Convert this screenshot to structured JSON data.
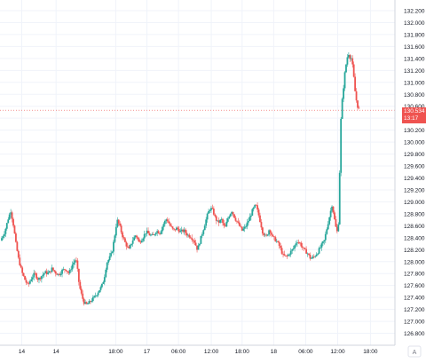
{
  "chart_data": {
    "type": "candlestick",
    "title": "",
    "xlabel": "",
    "ylabel": "",
    "ylim": [
      126.6,
      132.3
    ],
    "y_ticks": [
      "132.200",
      "132.000",
      "131.800",
      "131.600",
      "131.400",
      "131.200",
      "131.000",
      "130.800",
      "130.600",
      "130.400",
      "130.200",
      "130.000",
      "129.800",
      "129.600",
      "129.400",
      "129.200",
      "129.000",
      "128.800",
      "128.600",
      "128.400",
      "128.200",
      "128.000",
      "127.800",
      "127.600",
      "127.400",
      "127.200",
      "127.000",
      "126.800"
    ],
    "x_ticks": [
      {
        "label": "14",
        "at": 0.055
      },
      {
        "label": "14",
        "at": 0.142
      },
      {
        "label": "18:00",
        "at": 0.293
      },
      {
        "label": "17",
        "at": 0.372
      },
      {
        "label": "06:00",
        "at": 0.452
      },
      {
        "label": "12:00",
        "at": 0.535
      },
      {
        "label": "18:00",
        "at": 0.613
      },
      {
        "label": "18",
        "at": 0.693
      },
      {
        "label": "06:00",
        "at": 0.774
      },
      {
        "label": "12:00",
        "at": 0.855
      },
      {
        "label": "18:00",
        "at": 0.938
      }
    ],
    "series": [
      {
        "colors": {
          "up": "#26a69a",
          "down": "#ef5350"
        },
        "path": [
          [
            0,
            128.35
          ],
          [
            5,
            128.5
          ],
          [
            9,
            128.72
          ],
          [
            12,
            128.85
          ],
          [
            15,
            128.62
          ],
          [
            18,
            128.3
          ],
          [
            21,
            128.05
          ],
          [
            25,
            127.82
          ],
          [
            29,
            127.68
          ],
          [
            32,
            127.6
          ],
          [
            36,
            127.72
          ],
          [
            40,
            127.8
          ],
          [
            44,
            127.7
          ],
          [
            48,
            127.76
          ],
          [
            52,
            127.82
          ],
          [
            56,
            127.8
          ],
          [
            60,
            127.88
          ],
          [
            64,
            127.82
          ],
          [
            68,
            127.78
          ],
          [
            72,
            127.85
          ],
          [
            76,
            127.88
          ],
          [
            80,
            127.8
          ],
          [
            84,
            127.95
          ],
          [
            88,
            128.05
          ],
          [
            90,
            127.85
          ],
          [
            92,
            127.6
          ],
          [
            95,
            127.42
          ],
          [
            98,
            127.3
          ],
          [
            101,
            127.28
          ],
          [
            104,
            127.32
          ],
          [
            108,
            127.38
          ],
          [
            112,
            127.45
          ],
          [
            115,
            127.52
          ],
          [
            118,
            127.58
          ],
          [
            121,
            127.72
          ],
          [
            124,
            127.98
          ],
          [
            127,
            128.05
          ],
          [
            130,
            128.15
          ],
          [
            133,
            128.4
          ],
          [
            136,
            128.7
          ],
          [
            139,
            128.6
          ],
          [
            142,
            128.45
          ],
          [
            146,
            128.3
          ],
          [
            150,
            128.2
          ],
          [
            154,
            128.35
          ],
          [
            158,
            128.45
          ],
          [
            162,
            128.32
          ],
          [
            166,
            128.4
          ],
          [
            170,
            128.5
          ],
          [
            174,
            128.45
          ],
          [
            178,
            128.42
          ],
          [
            182,
            128.52
          ],
          [
            186,
            128.48
          ],
          [
            190,
            128.62
          ],
          [
            194,
            128.72
          ],
          [
            198,
            128.6
          ],
          [
            202,
            128.52
          ],
          [
            206,
            128.56
          ],
          [
            210,
            128.5
          ],
          [
            214,
            128.52
          ],
          [
            218,
            128.45
          ],
          [
            222,
            128.42
          ],
          [
            226,
            128.35
          ],
          [
            230,
            128.2
          ],
          [
            233,
            128.35
          ],
          [
            236,
            128.5
          ],
          [
            239,
            128.65
          ],
          [
            242,
            128.8
          ],
          [
            245,
            128.9
          ],
          [
            248,
            128.85
          ],
          [
            251,
            128.72
          ],
          [
            254,
            128.65
          ],
          [
            258,
            128.7
          ],
          [
            262,
            128.55
          ],
          [
            266,
            128.75
          ],
          [
            270,
            128.85
          ],
          [
            274,
            128.72
          ],
          [
            278,
            128.62
          ],
          [
            282,
            128.52
          ],
          [
            286,
            128.58
          ],
          [
            290,
            128.7
          ],
          [
            294,
            128.85
          ],
          [
            298,
            128.95
          ],
          [
            302,
            128.75
          ],
          [
            306,
            128.5
          ],
          [
            310,
            128.4
          ],
          [
            314,
            128.55
          ],
          [
            318,
            128.4
          ],
          [
            322,
            128.35
          ],
          [
            326,
            128.25
          ],
          [
            330,
            128.1
          ],
          [
            334,
            128.08
          ],
          [
            338,
            128.15
          ],
          [
            342,
            128.22
          ],
          [
            346,
            128.35
          ],
          [
            350,
            128.3
          ],
          [
            354,
            128.2
          ],
          [
            358,
            128.15
          ],
          [
            362,
            128.05
          ],
          [
            366,
            128.08
          ],
          [
            370,
            128.15
          ],
          [
            374,
            128.25
          ],
          [
            378,
            128.35
          ],
          [
            381,
            128.55
          ],
          [
            384,
            128.75
          ],
          [
            387,
            128.95
          ],
          [
            389,
            128.8
          ],
          [
            391,
            128.6
          ],
          [
            393,
            128.5
          ],
          [
            395,
            128.7
          ],
          [
            396,
            129.5
          ],
          [
            397,
            130.2
          ],
          [
            398,
            130.55
          ],
          [
            400,
            130.85
          ],
          [
            402,
            131.15
          ],
          [
            404,
            131.35
          ],
          [
            406,
            131.5
          ],
          [
            408,
            131.42
          ],
          [
            410,
            131.4
          ],
          [
            412,
            131.15
          ],
          [
            414,
            130.85
          ],
          [
            416,
            130.65
          ],
          [
            418,
            130.55
          ]
        ]
      }
    ],
    "last_price": "130.534",
    "countdown": "13:17",
    "horizon_x": 420,
    "x_max": 430
  },
  "watermark": "A"
}
